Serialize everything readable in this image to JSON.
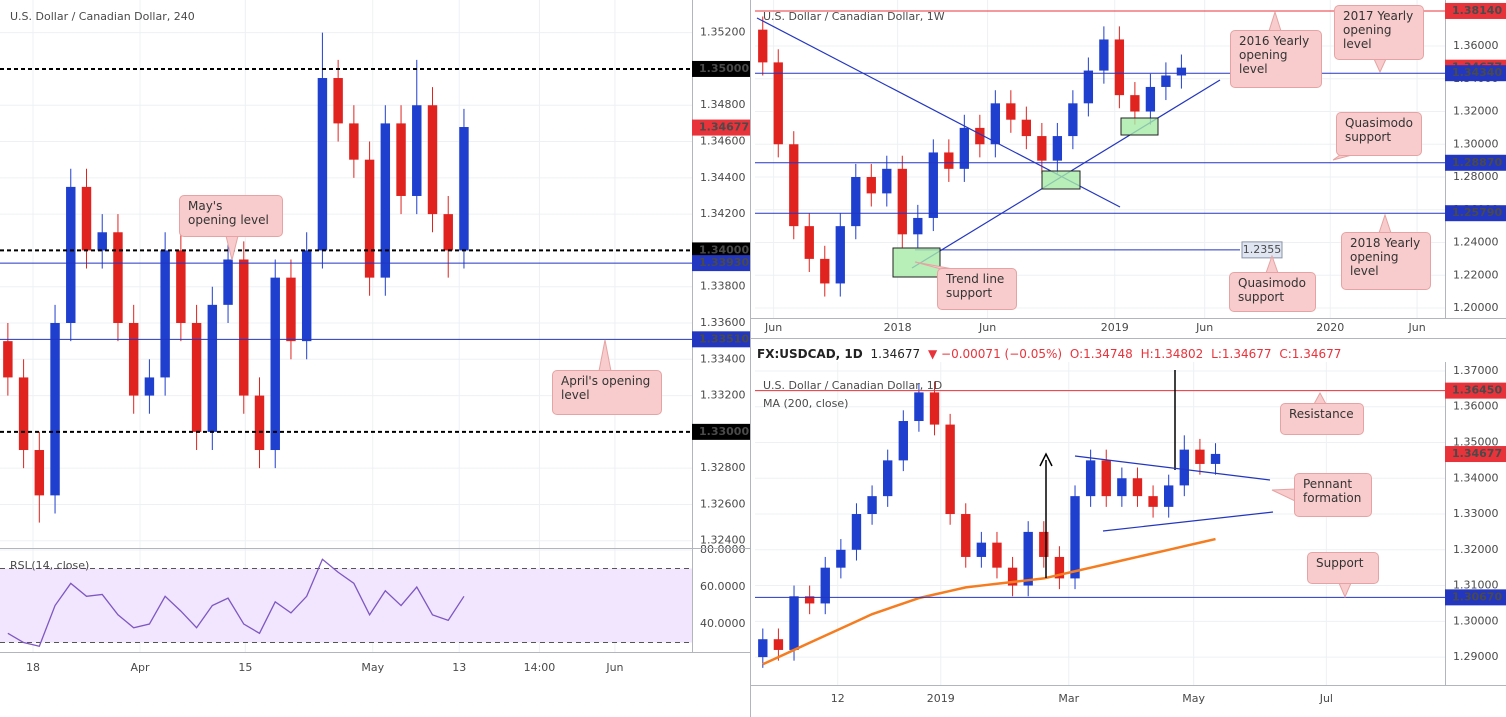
{
  "chart_data": [
    {
      "type": "candlestick",
      "title": "U.S. Dollar / Canadian Dollar, 240",
      "up_color": "#1f3fcf",
      "down_color": "#e0231f",
      "grid": true,
      "xlim": [
        0,
        44
      ],
      "ylim": [
        1.3236,
        1.3538
      ],
      "xticks": [
        {
          "value": 2.1,
          "label": "18"
        },
        {
          "value": 8.9,
          "label": "Apr"
        },
        {
          "value": 15.6,
          "label": "15"
        },
        {
          "value": 23.7,
          "label": "May"
        },
        {
          "value": 29.2,
          "label": "13"
        },
        {
          "value": 34.3,
          "label": "14:00"
        },
        {
          "value": 39.1,
          "label": "Jun"
        }
      ],
      "yticks": [
        {
          "value": 1.324,
          "label": "1.32400"
        },
        {
          "value": 1.326,
          "label": "1.32600"
        },
        {
          "value": 1.328,
          "label": "1.32800"
        },
        {
          "value": 1.332,
          "label": "1.33200"
        },
        {
          "value": 1.334,
          "label": "1.33400"
        },
        {
          "value": 1.336,
          "label": "1.33600"
        },
        {
          "value": 1.338,
          "label": "1.33800"
        },
        {
          "value": 1.342,
          "label": "1.34200"
        },
        {
          "value": 1.344,
          "label": "1.34400"
        },
        {
          "value": 1.346,
          "label": "1.34600"
        },
        {
          "value": 1.348,
          "label": "1.34800"
        },
        {
          "value": 1.352,
          "label": "1.35200"
        }
      ],
      "candles": {
        "open": [
          1.335,
          1.333,
          1.329,
          1.3265,
          1.336,
          1.3435,
          1.34,
          1.341,
          1.336,
          1.332,
          1.333,
          1.34,
          1.336,
          1.33,
          1.337,
          1.3395,
          1.332,
          1.329,
          1.3385,
          1.335,
          1.34,
          1.3495,
          1.347,
          1.345,
          1.3385,
          1.347,
          1.343,
          1.348,
          1.342,
          1.34
        ],
        "high": [
          1.336,
          1.334,
          1.33,
          1.337,
          1.3445,
          1.3445,
          1.342,
          1.342,
          1.337,
          1.334,
          1.341,
          1.341,
          1.337,
          1.338,
          1.3405,
          1.3405,
          1.333,
          1.3395,
          1.3395,
          1.341,
          1.352,
          1.3505,
          1.348,
          1.346,
          1.348,
          1.348,
          1.3505,
          1.349,
          1.343,
          1.3478
        ],
        "low": [
          1.332,
          1.328,
          1.325,
          1.3255,
          1.335,
          1.339,
          1.339,
          1.335,
          1.331,
          1.331,
          1.332,
          1.335,
          1.329,
          1.329,
          1.336,
          1.331,
          1.328,
          1.328,
          1.334,
          1.334,
          1.339,
          1.346,
          1.344,
          1.3375,
          1.3375,
          1.342,
          1.342,
          1.341,
          1.3385,
          1.339
        ],
        "close": [
          1.333,
          1.329,
          1.3265,
          1.336,
          1.3435,
          1.34,
          1.341,
          1.336,
          1.332,
          1.333,
          1.34,
          1.336,
          1.33,
          1.337,
          1.3395,
          1.332,
          1.329,
          1.3385,
          1.335,
          1.34,
          1.3495,
          1.347,
          1.345,
          1.3385,
          1.347,
          1.343,
          1.348,
          1.342,
          1.34,
          1.3468
        ]
      },
      "levels": [
        {
          "value": 1.35,
          "label": "1.35000",
          "color": "#000000",
          "style": "dashed"
        },
        {
          "value": 1.34677,
          "label": "1.34677",
          "color": "#e8333b",
          "style": "none"
        },
        {
          "value": 1.34,
          "label": "1.34000",
          "color": "#000000",
          "style": "dashed"
        },
        {
          "value": 1.3393,
          "label": "1.33930",
          "color": "#2336c0",
          "style": "solid"
        },
        {
          "value": 1.3351,
          "label": "1.33510",
          "color": "#2336c0",
          "style": "solid"
        },
        {
          "value": 1.33,
          "label": "1.33000",
          "color": "#000000",
          "style": "dashed"
        }
      ],
      "annotations": [
        {
          "text": "May's opening level"
        },
        {
          "text": "April's opening level"
        }
      ]
    },
    {
      "type": "line",
      "title": "RSI (14, close)",
      "color": "#7e57c2",
      "grid": true,
      "xlim": [
        0,
        44
      ],
      "ylim": [
        24.9,
        81.1
      ],
      "yticks": [
        {
          "value": 40,
          "label": "40.0000"
        },
        {
          "value": 60,
          "label": "60.0000"
        },
        {
          "value": 80,
          "label": "80.0000"
        }
      ],
      "band": [
        30,
        70
      ],
      "values": [
        35,
        30,
        28,
        50,
        62,
        55,
        56,
        45,
        38,
        40,
        55,
        47,
        38,
        50,
        54,
        40,
        35,
        52,
        46,
        55,
        75,
        68,
        62,
        45,
        58,
        50,
        60,
        45,
        42,
        55
      ]
    },
    {
      "type": "candlestick",
      "title": "U.S. Dollar / Canadian Dollar, 1W",
      "up_color": "#1f3fcf",
      "down_color": "#e0231f",
      "grid": true,
      "xlim": [
        0,
        44.5
      ],
      "ylim": [
        1.1939,
        1.3881
      ],
      "xticks": [
        {
          "value": 1.2,
          "label": "Jun"
        },
        {
          "value": 9.2,
          "label": "2018"
        },
        {
          "value": 15.0,
          "label": "Jun"
        },
        {
          "value": 23.2,
          "label": "2019"
        },
        {
          "value": 29.0,
          "label": "Jun"
        },
        {
          "value": 37.1,
          "label": "2020"
        },
        {
          "value": 42.7,
          "label": "Jun"
        }
      ],
      "yticks": [
        {
          "value": 1.2,
          "label": "1.20000"
        },
        {
          "value": 1.22,
          "label": "1.22000"
        },
        {
          "value": 1.24,
          "label": "1.24000"
        },
        {
          "value": 1.26,
          "label": "1.26000"
        },
        {
          "value": 1.28,
          "label": "1.28000"
        },
        {
          "value": 1.3,
          "label": "1.30000"
        },
        {
          "value": 1.32,
          "label": "1.32000"
        },
        {
          "value": 1.34,
          "label": "1.34000"
        },
        {
          "value": 1.36,
          "label": "1.36000"
        }
      ],
      "candles": {
        "open": [
          1.37,
          1.35,
          1.3,
          1.25,
          1.23,
          1.215,
          1.25,
          1.28,
          1.27,
          1.285,
          1.245,
          1.255,
          1.295,
          1.285,
          1.31,
          1.3,
          1.325,
          1.315,
          1.305,
          1.29,
          1.305,
          1.325,
          1.345,
          1.364,
          1.33,
          1.32,
          1.335,
          1.342
        ],
        "high": [
          1.378,
          1.358,
          1.308,
          1.258,
          1.238,
          1.258,
          1.288,
          1.288,
          1.293,
          1.293,
          1.263,
          1.303,
          1.303,
          1.318,
          1.318,
          1.333,
          1.333,
          1.323,
          1.313,
          1.313,
          1.333,
          1.353,
          1.372,
          1.372,
          1.338,
          1.343,
          1.35,
          1.3548
        ],
        "low": [
          1.342,
          1.292,
          1.242,
          1.222,
          1.207,
          1.207,
          1.242,
          1.262,
          1.262,
          1.237,
          1.237,
          1.247,
          1.277,
          1.277,
          1.292,
          1.292,
          1.307,
          1.297,
          1.282,
          1.282,
          1.297,
          1.317,
          1.337,
          1.322,
          1.312,
          1.312,
          1.327,
          1.334
        ],
        "close": [
          1.35,
          1.3,
          1.25,
          1.23,
          1.215,
          1.25,
          1.28,
          1.27,
          1.285,
          1.245,
          1.255,
          1.295,
          1.285,
          1.31,
          1.3,
          1.325,
          1.315,
          1.305,
          1.29,
          1.305,
          1.325,
          1.345,
          1.364,
          1.33,
          1.32,
          1.335,
          1.342,
          1.3468
        ]
      },
      "levels": [
        {
          "value": 1.3814,
          "label": "1.38140",
          "color": "#e8333b",
          "style": "solid"
        },
        {
          "value": 1.34677,
          "label": "1.34677",
          "color": "#e8333b",
          "style": "none"
        },
        {
          "value": 1.3434,
          "label": "1.34340",
          "color": "#2336c0",
          "style": "solid"
        },
        {
          "value": 1.2887,
          "label": "1.28870",
          "color": "#2336c0",
          "style": "solid"
        },
        {
          "value": 1.2579,
          "label": "1.25790",
          "color": "#2336c0",
          "style": "solid"
        },
        {
          "value": 1.2355,
          "label": "1.2355",
          "color": "#2336c0",
          "style": "inline"
        }
      ],
      "annotations": [
        {
          "text": "2016 Yearly opening level"
        },
        {
          "text": "2017 Yearly opening level"
        },
        {
          "text": "Quasimodo support"
        },
        {
          "text": "2018 Yearly opening level"
        },
        {
          "text": "Trend line support"
        },
        {
          "text": "Quasimodo support"
        }
      ]
    },
    {
      "type": "candlestick",
      "title": "U.S. Dollar / Canadian Dollar, 1D",
      "up_color": "#1f3fcf",
      "down_color": "#e0231f",
      "grid": true,
      "header": {
        "symbol": "FX:USDCAD, 1D",
        "price": "1.34677",
        "change": "▼ −0.00071 (−0.05%)",
        "open": "O:1.34748",
        "high": "H:1.34802",
        "low": "L:1.34677",
        "close": "C:1.34677"
      },
      "xlim": [
        0,
        44.2
      ],
      "ylim": [
        1.2822,
        1.3725
      ],
      "xticks": [
        {
          "value": 5.3,
          "label": "12"
        },
        {
          "value": 11.9,
          "label": "2019"
        },
        {
          "value": 20.1,
          "label": "Mar"
        },
        {
          "value": 28.1,
          "label": "May"
        },
        {
          "value": 36.6,
          "label": "Jul"
        }
      ],
      "yticks": [
        {
          "value": 1.29,
          "label": "1.29000"
        },
        {
          "value": 1.3,
          "label": "1.30000"
        },
        {
          "value": 1.31,
          "label": "1.31000"
        },
        {
          "value": 1.32,
          "label": "1.32000"
        },
        {
          "value": 1.33,
          "label": "1.33000"
        },
        {
          "value": 1.34,
          "label": "1.34000"
        },
        {
          "value": 1.35,
          "label": "1.35000"
        },
        {
          "value": 1.36,
          "label": "1.36000"
        },
        {
          "value": 1.37,
          "label": "1.37000"
        }
      ],
      "candles": {
        "open": [
          1.29,
          1.295,
          1.292,
          1.307,
          1.305,
          1.315,
          1.32,
          1.33,
          1.335,
          1.345,
          1.356,
          1.364,
          1.355,
          1.33,
          1.318,
          1.322,
          1.315,
          1.31,
          1.325,
          1.318,
          1.312,
          1.335,
          1.345,
          1.335,
          1.34,
          1.335,
          1.332,
          1.338,
          1.348,
          1.344
        ],
        "high": [
          1.298,
          1.298,
          1.31,
          1.31,
          1.318,
          1.323,
          1.333,
          1.338,
          1.348,
          1.359,
          1.3665,
          1.367,
          1.358,
          1.333,
          1.325,
          1.325,
          1.318,
          1.328,
          1.328,
          1.321,
          1.338,
          1.348,
          1.348,
          1.343,
          1.343,
          1.338,
          1.341,
          1.352,
          1.351,
          1.3498
        ],
        "low": [
          1.287,
          1.289,
          1.289,
          1.302,
          1.302,
          1.312,
          1.317,
          1.327,
          1.332,
          1.342,
          1.353,
          1.352,
          1.327,
          1.315,
          1.315,
          1.312,
          1.307,
          1.307,
          1.315,
          1.309,
          1.309,
          1.332,
          1.332,
          1.332,
          1.332,
          1.329,
          1.329,
          1.335,
          1.341,
          1.341
        ],
        "close": [
          1.295,
          1.292,
          1.307,
          1.305,
          1.315,
          1.32,
          1.33,
          1.335,
          1.345,
          1.356,
          1.364,
          1.355,
          1.33,
          1.318,
          1.322,
          1.315,
          1.31,
          1.325,
          1.318,
          1.312,
          1.335,
          1.345,
          1.335,
          1.34,
          1.335,
          1.332,
          1.338,
          1.348,
          1.344,
          1.3468
        ]
      },
      "series": [
        {
          "name": "MA (200, close)",
          "color": "#f57c1f",
          "values": [
            1.288,
            1.29,
            1.292,
            1.294,
            1.296,
            1.298,
            1.3,
            1.302,
            1.3035,
            1.305,
            1.3065,
            1.3075,
            1.3085,
            1.3095,
            1.31,
            1.3105,
            1.311,
            1.3115,
            1.312,
            1.313,
            1.314,
            1.315,
            1.316,
            1.317,
            1.318,
            1.319,
            1.32,
            1.321,
            1.322,
            1.323
          ]
        }
      ],
      "levels": [
        {
          "value": 1.3645,
          "label": "1.36450",
          "color": "#e8333b",
          "style": "solid"
        },
        {
          "value": 1.34677,
          "label": "1.34677",
          "color": "#e8333b",
          "style": "none"
        },
        {
          "value": 1.3067,
          "label": "1.30670",
          "color": "#2336c0",
          "style": "solid"
        }
      ],
      "annotations": [
        {
          "text": "Resistance"
        },
        {
          "text": "Pennant formation"
        },
        {
          "text": "Support"
        }
      ]
    }
  ]
}
